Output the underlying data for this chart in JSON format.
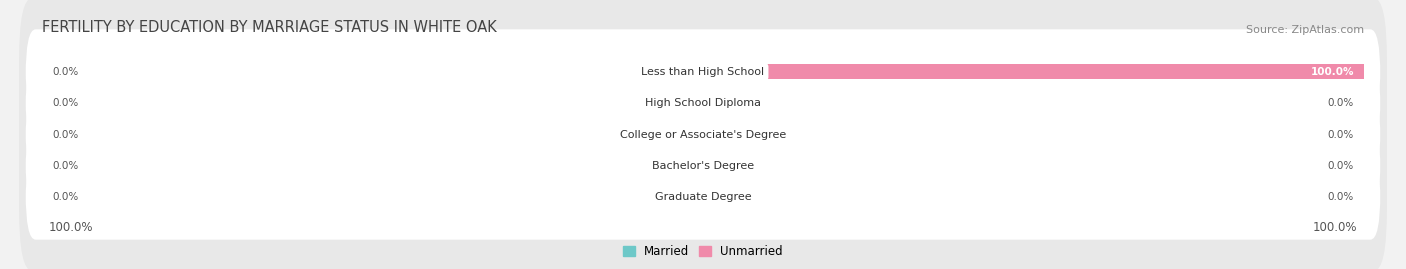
{
  "title": "FERTILITY BY EDUCATION BY MARRIAGE STATUS IN WHITE OAK",
  "source": "Source: ZipAtlas.com",
  "categories": [
    "Less than High School",
    "High School Diploma",
    "College or Associate's Degree",
    "Bachelor's Degree",
    "Graduate Degree"
  ],
  "married_values": [
    0.0,
    0.0,
    0.0,
    0.0,
    0.0
  ],
  "unmarried_values": [
    100.0,
    0.0,
    0.0,
    0.0,
    0.0
  ],
  "married_color": "#6dc8c8",
  "unmarried_color": "#f08aaa",
  "bar_height": 0.62,
  "background_color": "#f2f2f2",
  "row_bg_color": "#e4e4e4",
  "xlim": 100,
  "left_label": "100.0%",
  "right_label": "100.0%",
  "label_fontsize": 8.5,
  "title_fontsize": 10.5,
  "source_fontsize": 8,
  "category_fontsize": 8,
  "value_fontsize": 7.5,
  "stub_size": 7
}
